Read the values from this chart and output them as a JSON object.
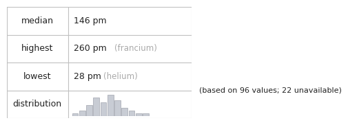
{
  "median_val": "146 pm",
  "highest_val": "260 pm",
  "highest_label": "(francium)",
  "lowest_val": "28 pm",
  "lowest_label": "(helium)",
  "note": "(based on 96 values; 22 unavailable)",
  "table_rows": [
    "median",
    "highest",
    "lowest",
    "distribution"
  ],
  "hist_bars": [
    1,
    2,
    4,
    7,
    5,
    8,
    6,
    3,
    2,
    1,
    1
  ],
  "bar_color": "#c8ccd4",
  "bar_edge_color": "#a0a4ad",
  "table_line_color": "#c0c0c0",
  "text_color_main": "#222222",
  "text_color_gray": "#aaaaaa",
  "bg_color": "#ffffff",
  "font_size_main": 9,
  "font_size_note": 8
}
